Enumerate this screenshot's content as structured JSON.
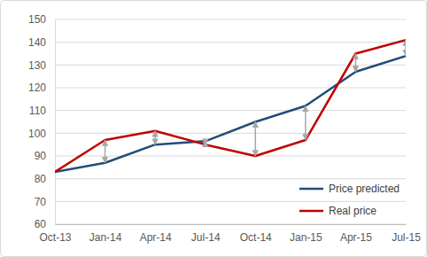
{
  "chart_data": {
    "type": "line",
    "categories": [
      "Oct-13",
      "Jan-14",
      "Apr-14",
      "Jul-14",
      "Oct-14",
      "Jan-15",
      "Apr-15",
      "Jul-15"
    ],
    "series": [
      {
        "name": "Price predicted",
        "color": "#1f4e79",
        "values": [
          83,
          87,
          95,
          96.5,
          105,
          112,
          127,
          134
        ]
      },
      {
        "name": "Real price",
        "color": "#c00000",
        "values": [
          83,
          97,
          101,
          95,
          90,
          97,
          135,
          141
        ]
      }
    ],
    "ylim": [
      60,
      150
    ],
    "yticks": [
      60,
      70,
      80,
      90,
      100,
      110,
      120,
      130,
      140,
      150
    ],
    "grid": true,
    "legend": "lower right"
  }
}
